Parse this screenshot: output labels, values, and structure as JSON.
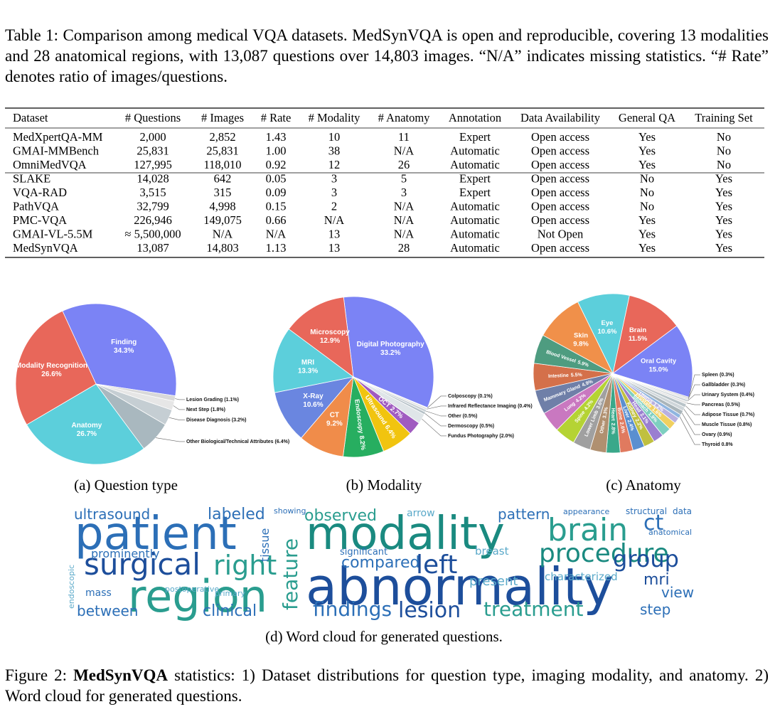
{
  "table": {
    "caption": "Table 1: Comparison among medical VQA datasets. MedSynVQA is open and reproducible, covering 13 modalities and 28 anatomical regions, with 13,087 questions over 14,803 images. “N/A” indicates missing statistics. “# Rate” denotes ratio of images/questions.",
    "columns": [
      "Dataset",
      "# Questions",
      "# Images",
      "# Rate",
      "# Modality",
      "# Anatomy",
      "Annotation",
      "Data Availability",
      "General QA",
      "Training Set"
    ],
    "rows": [
      [
        "MedXpertQA-MM",
        "2,000",
        "2,852",
        "1.43",
        "10",
        "11",
        "Expert",
        "Open access",
        "Yes",
        "No"
      ],
      [
        "GMAI-MMBench",
        "25,831",
        "25,831",
        "1.00",
        "38",
        "N/A",
        "Automatic",
        "Open access",
        "Yes",
        "No"
      ],
      [
        "OmniMedVQA",
        "127,995",
        "118,010",
        "0.92",
        "12",
        "26",
        "Automatic",
        "Open access",
        "Yes",
        "No"
      ],
      [
        "SLAKE",
        "14,028",
        "642",
        "0.05",
        "3",
        "5",
        "Expert",
        "Open access",
        "No",
        "Yes"
      ],
      [
        "VQA-RAD",
        "3,515",
        "315",
        "0.09",
        "3",
        "3",
        "Expert",
        "Open access",
        "No",
        "Yes"
      ],
      [
        "PathVQA",
        "32,799",
        "4,998",
        "0.15",
        "2",
        "N/A",
        "Automatic",
        "Open access",
        "No",
        "Yes"
      ],
      [
        "PMC-VQA",
        "226,946",
        "149,075",
        "0.66",
        "N/A",
        "N/A",
        "Automatic",
        "Open access",
        "Yes",
        "Yes"
      ],
      [
        "GMAI-VL-5.5M",
        "≈ 5,500,000",
        "N/A",
        "N/A",
        "13",
        "N/A",
        "Automatic",
        "Not Open",
        "Yes",
        "Yes"
      ],
      [
        "MedSynVQA",
        "13,087",
        "14,803",
        "1.13",
        "13",
        "28",
        "Automatic",
        "Open access",
        "Yes",
        "Yes"
      ]
    ]
  },
  "chart_data": [
    {
      "type": "pie",
      "caption": "(a) Question type",
      "categories": [
        "Finding",
        "Lesion Grading",
        "Next Step",
        "Disease Diagnosis",
        "Other Biological/Technical Attributes",
        "Anatomy",
        "Modality Recognition"
      ],
      "values": [
        34.3,
        1.1,
        1.8,
        3.2,
        6.4,
        26.7,
        26.6
      ],
      "value_labels": [
        "34.3%",
        "(1.1%)",
        "(1.8%)",
        "(3.2%)",
        "(6.4%)",
        "26.7%",
        "26.6%"
      ],
      "colors": [
        "#7b83f5",
        "#d9d9d9",
        "#e6e6e6",
        "#c5ced3",
        "#a9b8bf",
        "#5ccfdb",
        "#e8675a"
      ]
    },
    {
      "type": "pie",
      "caption": "(b) Modality",
      "categories": [
        "Digital Photography",
        "Colposcopy",
        "Infrared Reflectance Imaging",
        "Other",
        "Dermoscopy",
        "Fundus Photography",
        "OCT",
        "Ultrasound",
        "Endoscopy",
        "CT",
        "X-Ray",
        "MRI",
        "Microscopy"
      ],
      "values": [
        33.2,
        0.1,
        0.4,
        0.5,
        0.5,
        2.0,
        2.7,
        6.4,
        8.2,
        9.2,
        10.6,
        13.3,
        12.9
      ],
      "value_labels": [
        "33.2%",
        "(0.1%)",
        "(0.4%)",
        "(0.5%)",
        "(0.5%)",
        "(2.0%)",
        "2.7%",
        "6.4%",
        "8.2%",
        "9.2%",
        "10.6%",
        "13.3%",
        "12.9%"
      ],
      "colors": [
        "#7b83f5",
        "#d0d0d0",
        "#e2e2e2",
        "#c8d0d4",
        "#b4c0c6",
        "#dfe5e8",
        "#a05bc0",
        "#f1c40f",
        "#27ae60",
        "#f08c4a",
        "#6a86e0",
        "#5ccfdb",
        "#e8675a"
      ]
    },
    {
      "type": "pie",
      "caption": "(c) Anatomy",
      "categories": [
        "Brain",
        "Oral Cavity",
        "Spleen",
        "Gallbladder",
        "Urinary System",
        "Pancreas",
        "Adipose Tissue",
        "Muscle Tissue",
        "Ovary",
        "Thyroid",
        "Uterus",
        "Prostate",
        "Stomach",
        "Head",
        "Kidney",
        "Liver",
        "Bone",
        "Heart",
        "Other",
        "Lower Limb",
        "Spine",
        "Lung",
        "Mammary Gland",
        "Intestine",
        "Blood Vessel",
        "Skin",
        "Eye"
      ],
      "values": [
        11.5,
        15.0,
        0.3,
        0.3,
        0.4,
        0.5,
        0.7,
        0.8,
        0.9,
        0.8,
        1.2,
        1.6,
        1.9,
        2.1,
        2.2,
        2.4,
        2.6,
        2.8,
        3.3,
        3.6,
        4.2,
        4.2,
        4.9,
        5.5,
        5.9,
        9.8,
        10.6
      ],
      "value_labels": [
        "11.5%",
        "15.0%",
        "(0.3%)",
        "(0.3%)",
        "(0.4%)",
        "(0.5%)",
        "(0.7%)",
        "(0.8%)",
        "(0.9%)",
        "0.8%",
        "1.2%",
        "1.6%",
        "1.9%",
        "2.1%",
        "2.2%",
        "2.4%",
        "2.6%",
        "2.8%",
        "3.3%",
        "3.6%",
        "4.2%",
        "4.2%",
        "4.9%",
        "5.5%",
        "5.9%",
        "9.8%",
        "10.6%"
      ],
      "colors": [
        "#e8675a",
        "#7b83f5",
        "#d0d0d0",
        "#dcdcdc",
        "#c6ced2",
        "#e4e4e4",
        "#b8c3c8",
        "#cfd6da",
        "#aab5ba",
        "#8fb5e0",
        "#b8b0e0",
        "#f0d060",
        "#7ecfc0",
        "#9a7fd0",
        "#c0c040",
        "#5a8fd0",
        "#e07a5f",
        "#3aa88a",
        "#b09070",
        "#a0a0a0",
        "#b5d334",
        "#c978c0",
        "#6f7fa8",
        "#d4704a",
        "#4e9c80",
        "#f0904a",
        "#5ccfdb"
      ]
    }
  ],
  "wordcloud": {
    "caption": "(d) Word cloud for generated questions.",
    "words": [
      "patient",
      "modality",
      "abnormality",
      "region",
      "surgical",
      "right",
      "brain",
      "procedure",
      "group",
      "ct",
      "left",
      "lesion",
      "treatment",
      "findings",
      "compared",
      "clinical",
      "between",
      "ultrasound",
      "labeled",
      "observed",
      "pattern",
      "view",
      "step",
      "mri",
      "characterized",
      "present",
      "breast",
      "prominently",
      "postoperative",
      "primary",
      "anatomical",
      "mass",
      "appearance",
      "structural",
      "data",
      "showing",
      "arrow",
      "significant",
      "tissue",
      "feature",
      "endoscopic"
    ]
  },
  "figure_caption": {
    "label": "Figure 2:",
    "bold": "MedSynVQA",
    "text": "statistics: 1) Dataset distributions for question type, imaging modality, and anatomy. 2) Word cloud for generated questions."
  }
}
